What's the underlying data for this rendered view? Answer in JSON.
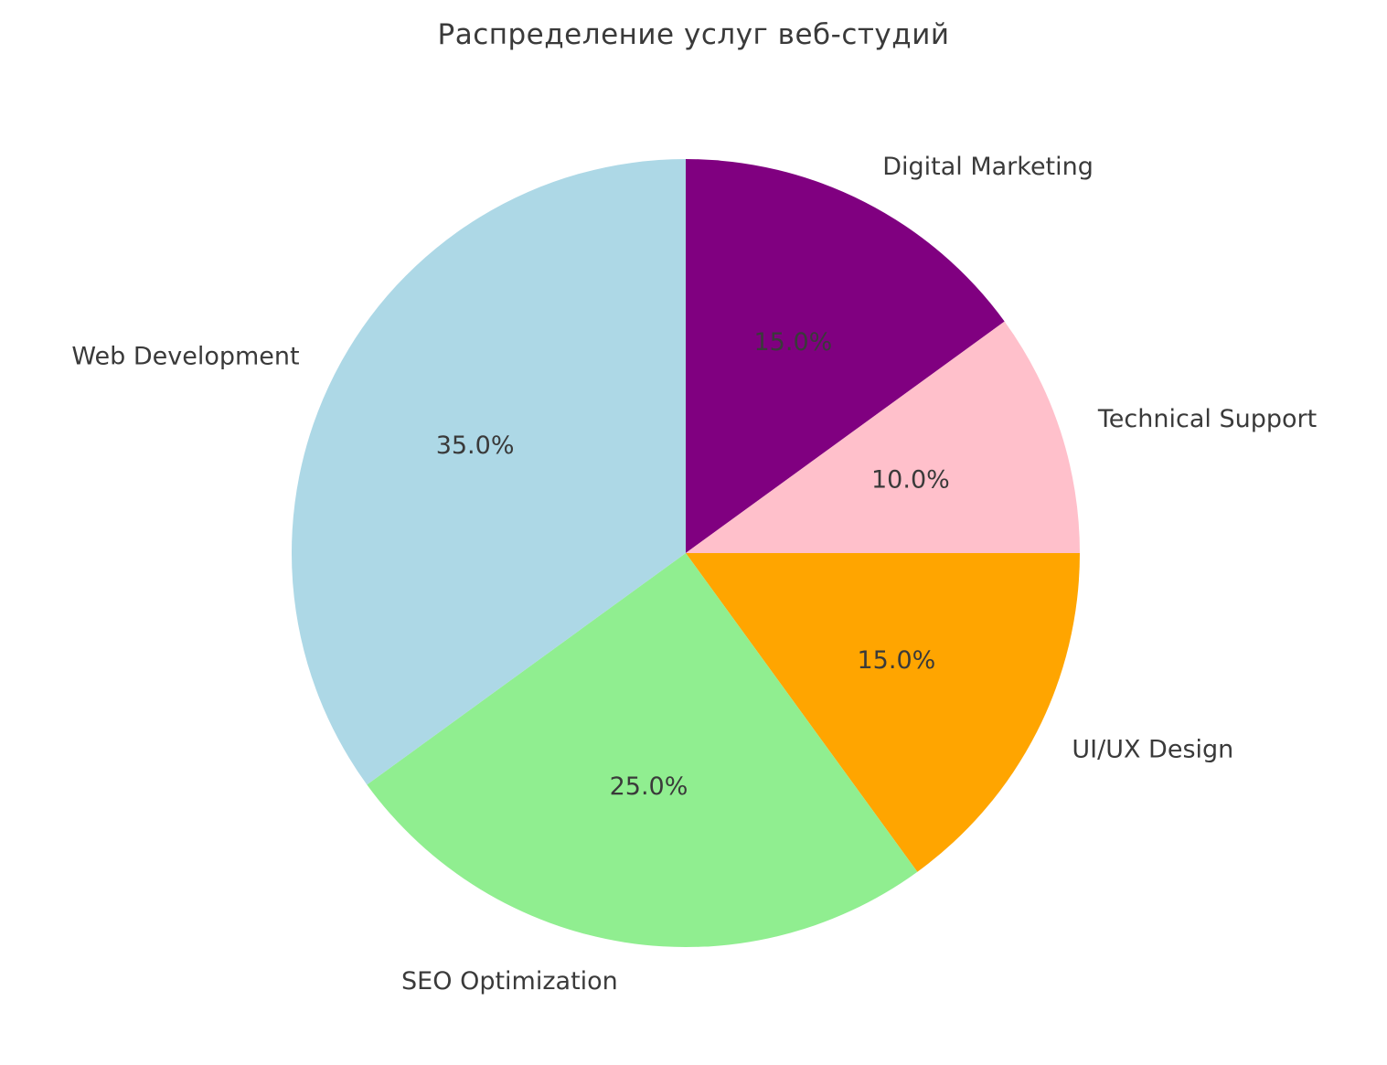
{
  "title": "Распределение услуг веб-студий",
  "style": {
    "background": "#ffffff",
    "text_color": "#3a3a3a",
    "pct_text_color": "#3a3a3a"
  },
  "chart_data": {
    "type": "pie",
    "title": "Распределение услуг веб-студий",
    "labels": [
      "Digital Marketing",
      "Technical Support",
      "UI/UX Design",
      "SEO Optimization",
      "Web Development"
    ],
    "values": [
      15.0,
      10.0,
      15.0,
      25.0,
      35.0
    ],
    "percent_labels": [
      "15.0%",
      "10.0%",
      "15.0%",
      "25.0%",
      "35.0%"
    ],
    "colors": [
      "#800080",
      "#FFC0CB",
      "#FFA500",
      "#90EE90",
      "#ADD8E6"
    ],
    "start_angle_deg": 90,
    "direction": "clockwise",
    "label_distance": 1.1,
    "pct_distance": 0.6,
    "legend": "none",
    "grid": false
  }
}
